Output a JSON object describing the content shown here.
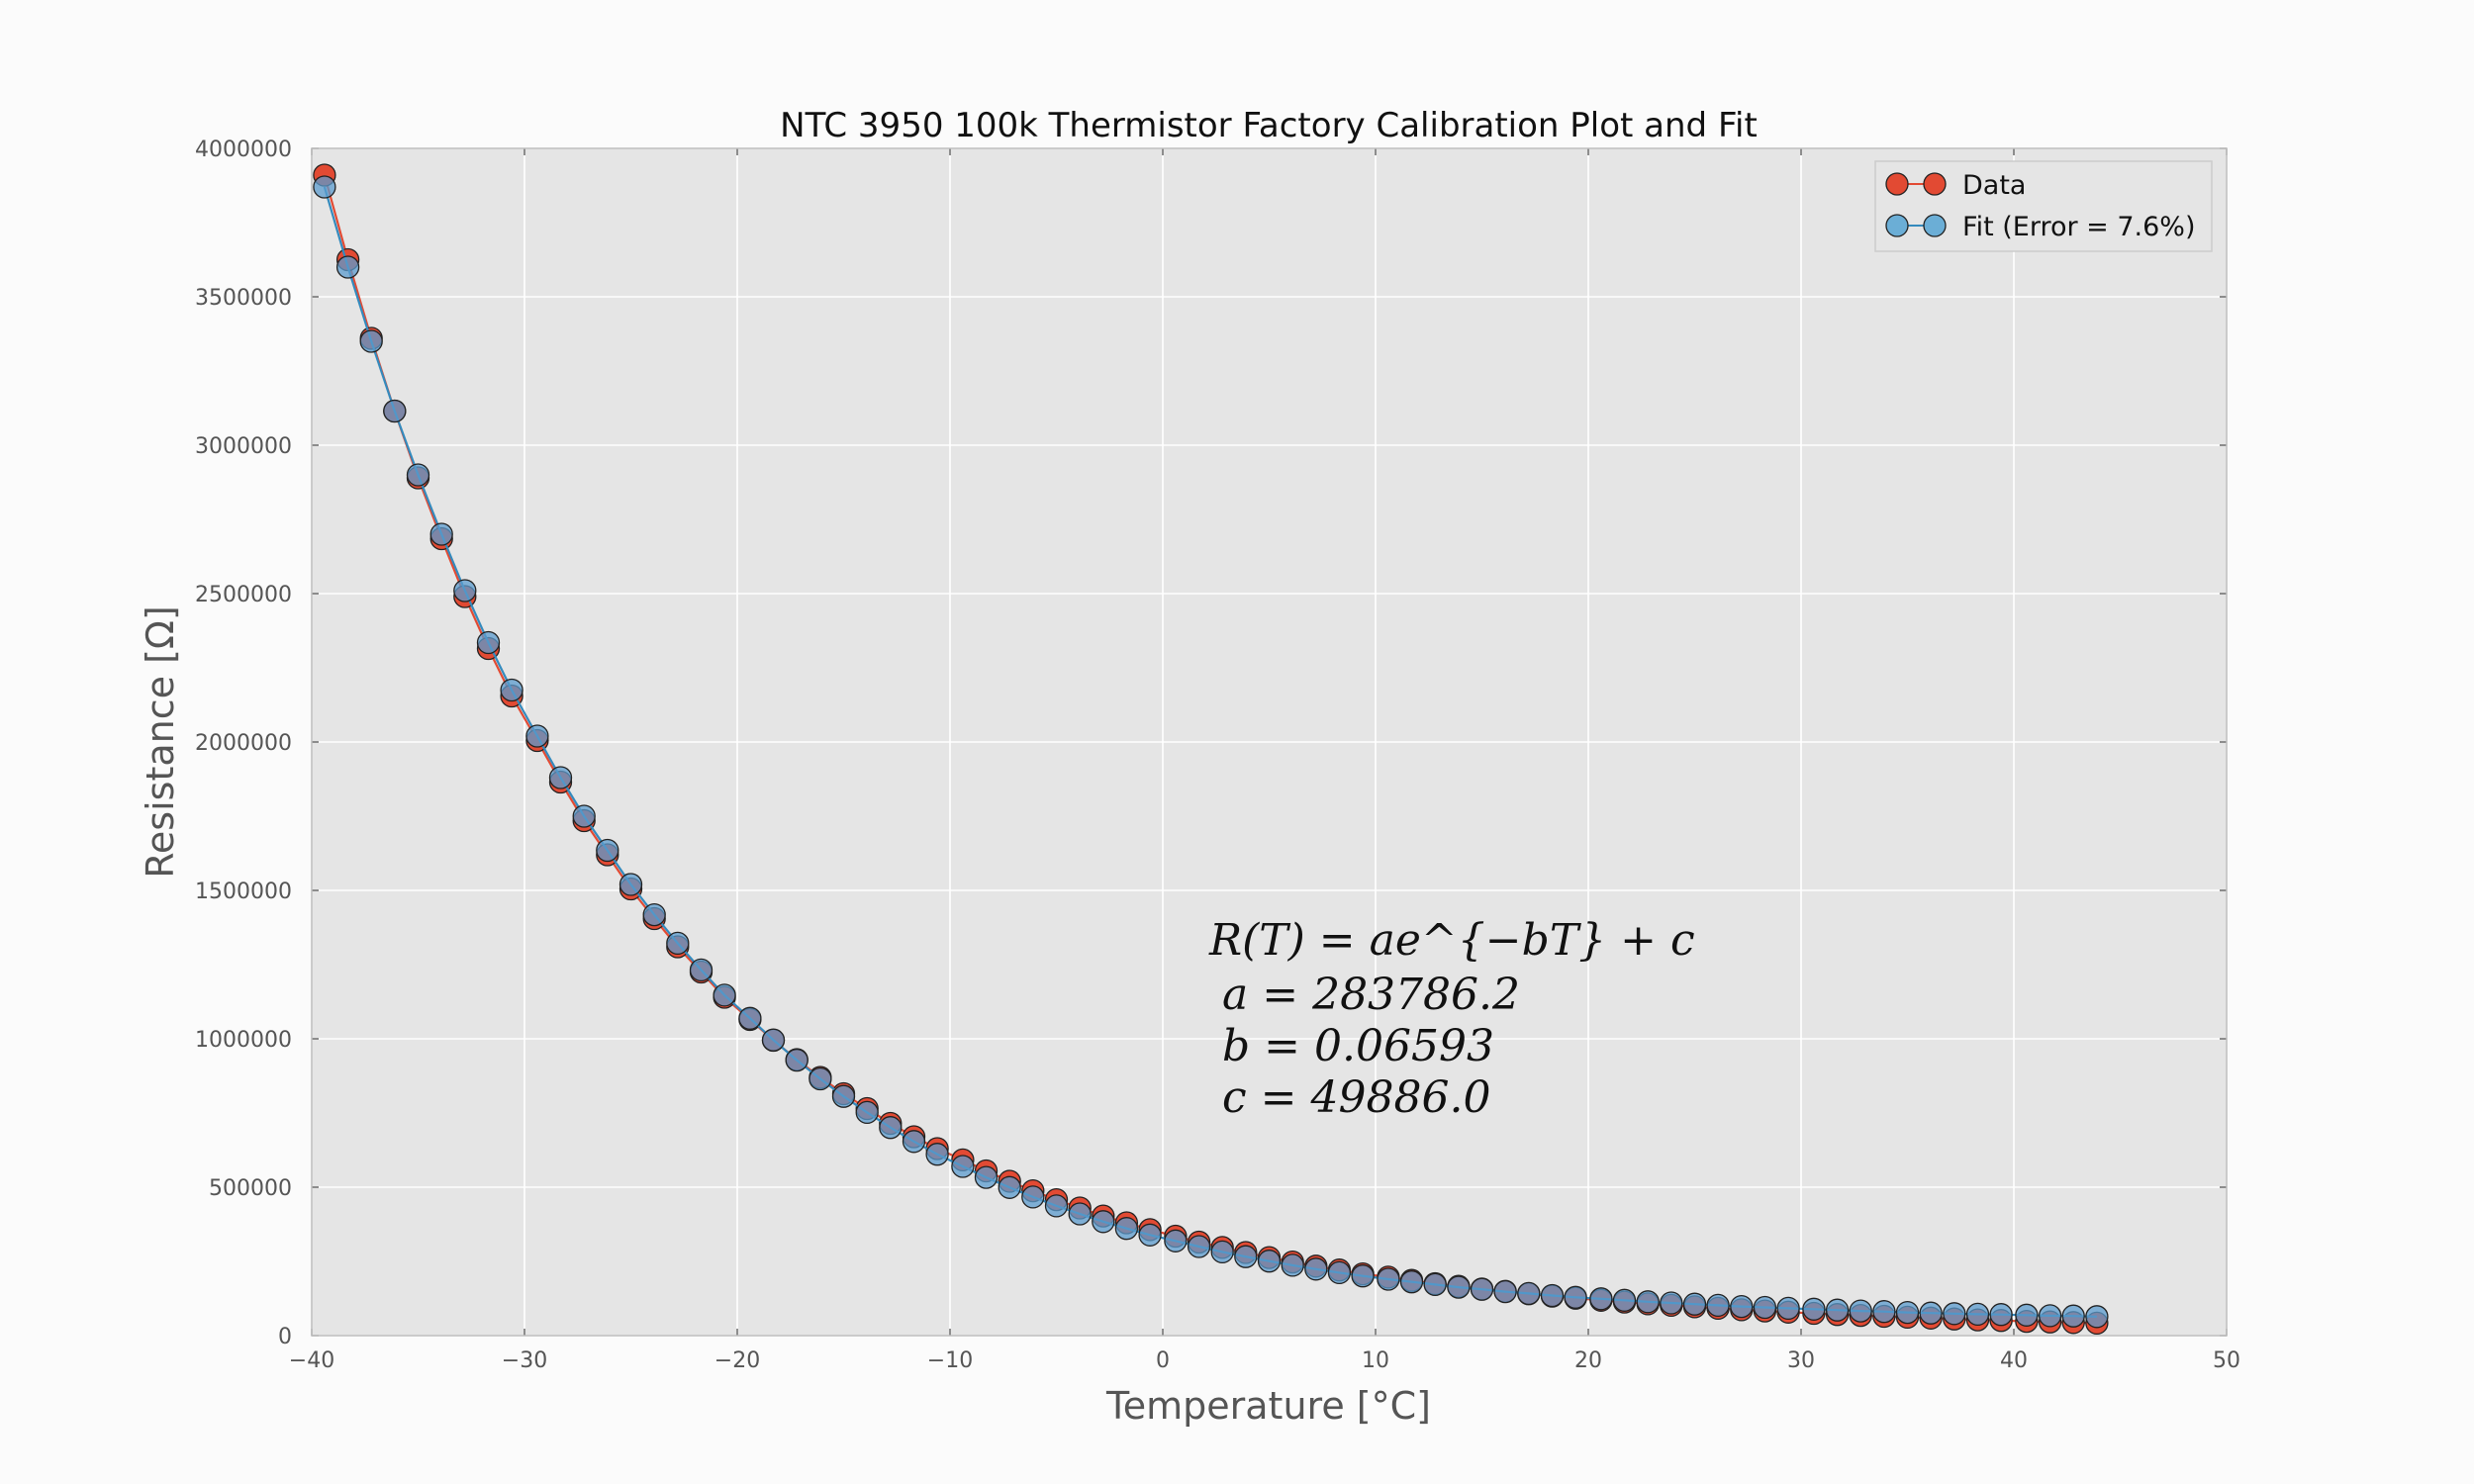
{
  "chart_data": {
    "type": "scatter",
    "title": "NTC 3950 100k Thermistor Factory Calibration Plot and Fit",
    "xlabel": "Temperature [°C]",
    "ylabel": "Resistance [Ω]",
    "xlim": [
      -40,
      50
    ],
    "ylim": [
      0,
      4000000
    ],
    "x_ticks": [
      -40,
      -30,
      -20,
      -10,
      0,
      10,
      20,
      30,
      40,
      50
    ],
    "x_tick_labels": [
      "−40",
      "−30",
      "−20",
      "−10",
      "0",
      "10",
      "20",
      "30",
      "40",
      "50"
    ],
    "y_ticks": [
      0,
      500000,
      1000000,
      1500000,
      2000000,
      2500000,
      3000000,
      3500000,
      4000000
    ],
    "y_tick_labels": [
      "0",
      "500000",
      "1000000",
      "1500000",
      "2000000",
      "2500000",
      "3000000",
      "3500000",
      "4000000"
    ],
    "grid": true,
    "legend_position": "top-right",
    "x": [
      -39.4,
      -38.3,
      -37.2,
      -36.1,
      -35.0,
      -33.9,
      -32.8,
      -31.7,
      -30.6,
      -29.4,
      -28.3,
      -27.2,
      -26.1,
      -25.0,
      -23.9,
      -22.8,
      -21.7,
      -20.6,
      -19.4,
      -18.3,
      -17.2,
      -16.1,
      -15.0,
      -13.9,
      -12.8,
      -11.7,
      -10.6,
      -9.4,
      -8.3,
      -7.2,
      -6.1,
      -5.0,
      -3.9,
      -2.8,
      -1.7,
      -0.6,
      0.6,
      1.7,
      2.8,
      3.9,
      5.0,
      6.1,
      7.2,
      8.3,
      9.4,
      10.6,
      11.7,
      12.8,
      13.9,
      15.0,
      16.1,
      17.2,
      18.3,
      19.4,
      20.6,
      21.7,
      22.8,
      23.9,
      25.0,
      26.1,
      27.2,
      28.3,
      29.4,
      30.6,
      31.7,
      32.8,
      33.9,
      35.0,
      36.1,
      37.2,
      38.3,
      39.4,
      40.6,
      41.7,
      42.8,
      43.9
    ],
    "series": [
      {
        "name": "Data",
        "color": "#e24a33",
        "values": [
          3910000,
          3625000,
          3360000,
          3115000,
          2890000,
          2685000,
          2490000,
          2315000,
          2155000,
          2005000,
          1865000,
          1735000,
          1620000,
          1505000,
          1405000,
          1310000,
          1225000,
          1140000,
          1065000,
          995000,
          930000,
          870000,
          815000,
          765000,
          715000,
          670000,
          630000,
          592000,
          555000,
          520000,
          488000,
          458000,
          430000,
          403000,
          380000,
          357000,
          335000,
          315000,
          297000,
          280000,
          263000,
          248000,
          234000,
          221000,
          208000,
          197000,
          186000,
          175000,
          166000,
          157000,
          149000,
          141000,
          133000,
          126000,
          119000,
          113000,
          107000,
          102000,
          97000,
          92000,
          87000,
          83000,
          79000,
          75000,
          71000,
          68000,
          65000,
          62000,
          59000,
          56000,
          53000,
          51000,
          48000,
          46000,
          44000,
          42000
        ]
      },
      {
        "name": "Fit (Error = 7.6%)",
        "color": "#348abd",
        "values": [
          3870000,
          3600000,
          3350000,
          3115000,
          2900000,
          2700000,
          2510000,
          2335000,
          2175000,
          2020000,
          1880000,
          1750000,
          1635000,
          1520000,
          1418000,
          1322000,
          1232000,
          1147000,
          1069000,
          996000,
          928000,
          865000,
          806000,
          752000,
          701000,
          654000,
          611000,
          570000,
          533000,
          499000,
          467000,
          437000,
          410000,
          384000,
          361000,
          339000,
          319000,
          300000,
          282000,
          266000,
          251000,
          237000,
          224000,
          212000,
          201000,
          190000,
          181000,
          172000,
          163000,
          156000,
          148000,
          142000,
          135000,
          129000,
          124000,
          119000,
          114000,
          110000,
          106000,
          102000,
          98000,
          95000,
          92000,
          89000,
          86000,
          83000,
          81000,
          78000,
          76000,
          74000,
          72000,
          71000,
          69000,
          67000,
          66000,
          64000
        ]
      }
    ],
    "annotation": {
      "equation": "R(T) = ae^{−bT} + c",
      "lines": [
        "a = 283786.2",
        "b = 0.06593",
        "c = 49886.0"
      ]
    }
  }
}
